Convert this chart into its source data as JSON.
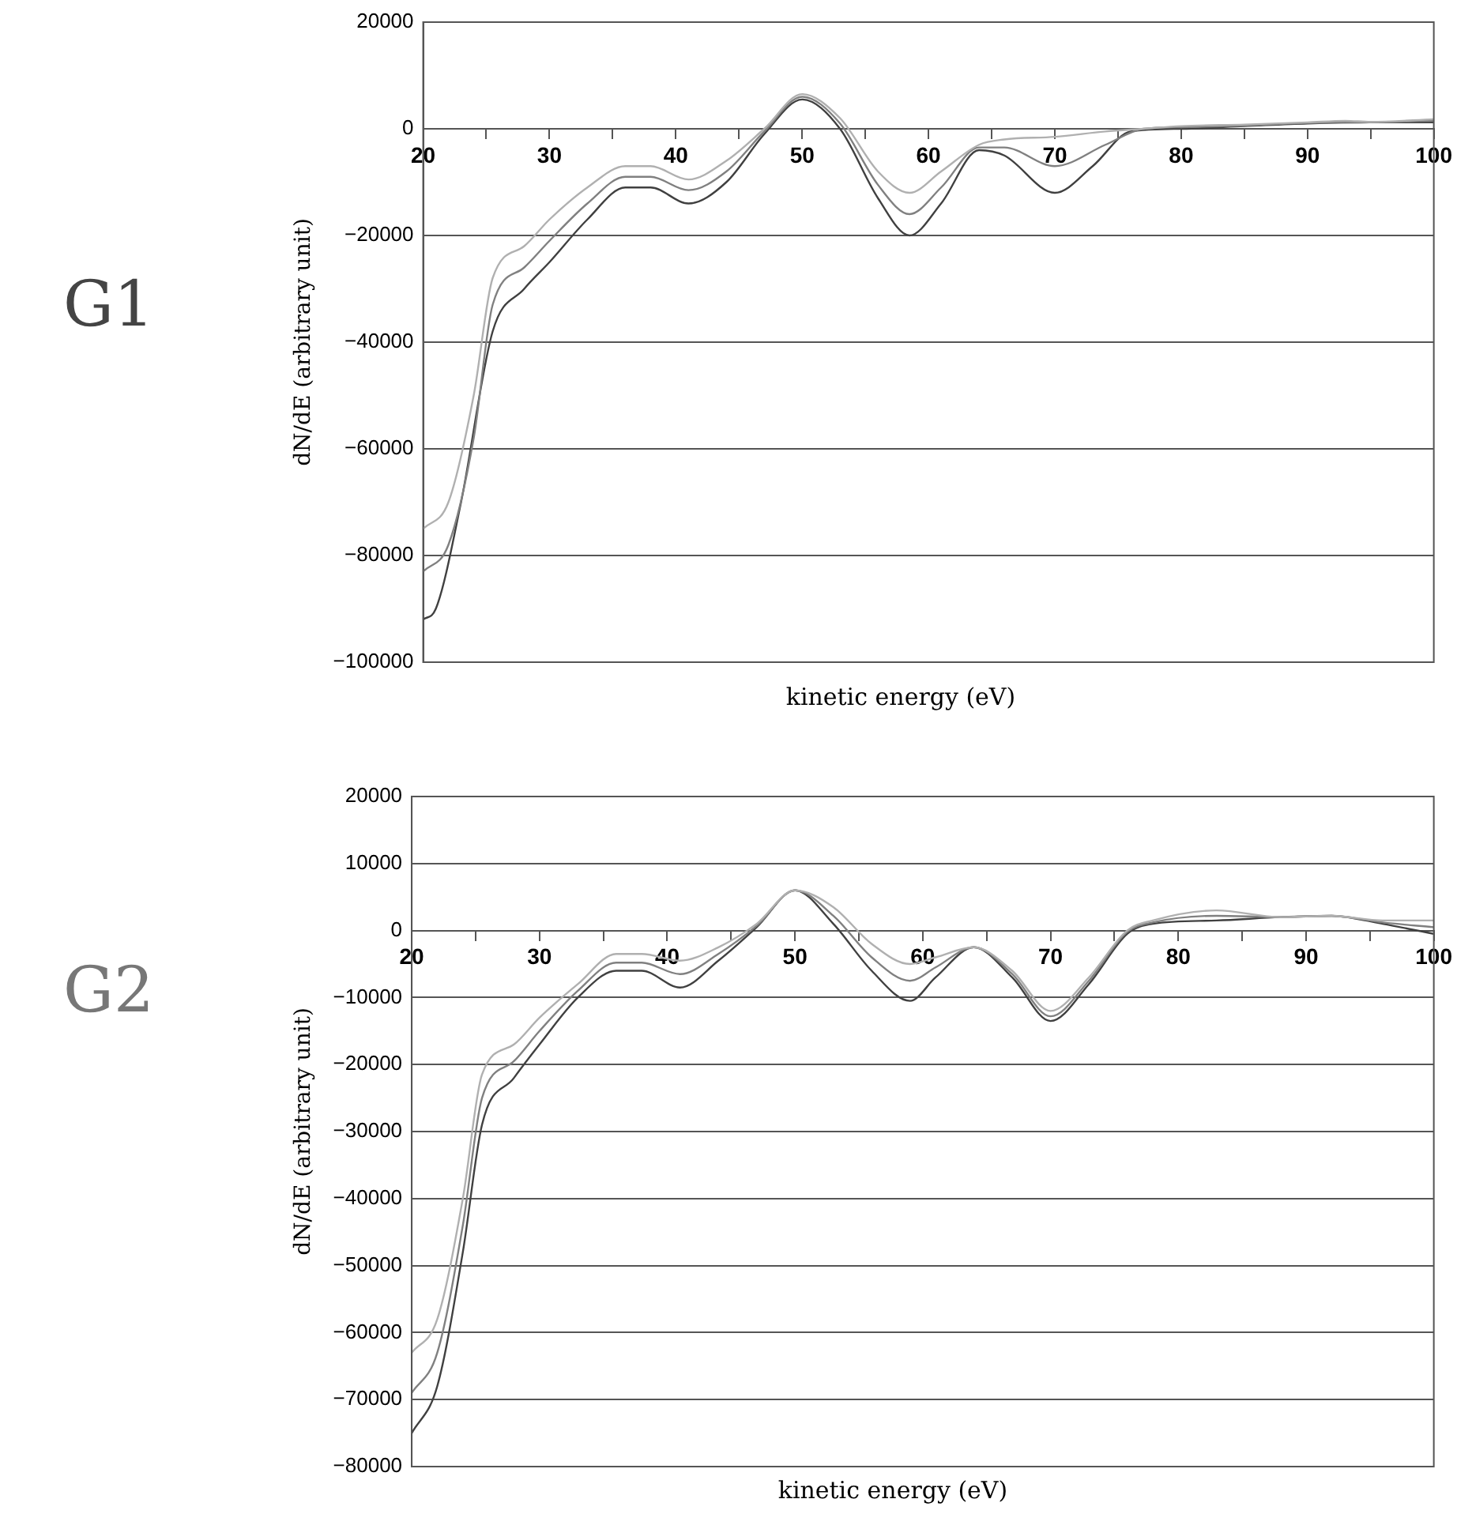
{
  "chart_data": [
    {
      "type": "line",
      "title": "G1",
      "xlabel": "kinetic energy (eV)",
      "ylabel": "dN/dE (arbitrary unit)",
      "xlim": [
        20,
        100
      ],
      "ylim": [
        -100000,
        20000
      ],
      "xticks": [
        20,
        {
          "value": 25,
          "label": null
        },
        30,
        {
          "value": 35,
          "label": null
        },
        40,
        {
          "value": 45,
          "label": null
        },
        50,
        {
          "value": 55,
          "label": null
        },
        60,
        {
          "value": 65,
          "label": null
        },
        70,
        {
          "value": 75,
          "label": null
        },
        80,
        {
          "value": 85,
          "label": null
        },
        90,
        {
          "value": 95,
          "label": null
        },
        100
      ],
      "yticks": [
        -100000,
        -80000,
        -60000,
        -40000,
        -20000,
        0,
        20000
      ],
      "grid": "y",
      "legend": false,
      "marker": "none",
      "line_style": "solid",
      "series": [
        {
          "color": "#b0b0b0",
          "x": [
            20,
            22,
            24,
            25.5,
            28,
            30,
            33,
            36,
            38,
            41,
            44,
            47,
            50,
            53,
            56,
            58.5,
            61,
            64,
            66,
            70,
            74,
            77,
            80,
            85,
            90,
            93,
            95,
            100
          ],
          "values": [
            -75000,
            -70000,
            -50000,
            -28000,
            -22000,
            -17000,
            -11000,
            -7000,
            -7000,
            -9500,
            -6000,
            0,
            6500,
            2000,
            -8000,
            -12000,
            -8000,
            -3000,
            -2000,
            -1500,
            -500,
            0,
            500,
            800,
            1200,
            1500,
            1300,
            1800
          ]
        },
        {
          "color": "#808080",
          "x": [
            20,
            22,
            24,
            25.5,
            28,
            30,
            33,
            36,
            38,
            41,
            44,
            47,
            50,
            53,
            56,
            58.5,
            61,
            64,
            66,
            70,
            74,
            77,
            80,
            85,
            90,
            95,
            100
          ],
          "values": [
            -83000,
            -78000,
            -58000,
            -33000,
            -26000,
            -21000,
            -14000,
            -9000,
            -9000,
            -11500,
            -8000,
            -500,
            6000,
            1000,
            -10500,
            -16000,
            -11000,
            -3500,
            -3500,
            -7000,
            -3000,
            0,
            300,
            600,
            1100,
            1200,
            1500
          ]
        },
        {
          "color": "#404040",
          "x": [
            20,
            21,
            23,
            25.5,
            28,
            30,
            33,
            36,
            38,
            41,
            44,
            47,
            50,
            53,
            56,
            58.5,
            61,
            64,
            66,
            70,
            73,
            76,
            80,
            85,
            90,
            95,
            100
          ],
          "values": [
            -92000,
            -90000,
            -70000,
            -38000,
            -30000,
            -25000,
            -17000,
            -11000,
            -11000,
            -14000,
            -10000,
            -1000,
            5500,
            0,
            -13000,
            -20000,
            -14000,
            -4000,
            -5000,
            -12000,
            -7000,
            -500,
            0,
            500,
            1000,
            1200,
            1200
          ]
        }
      ]
    },
    {
      "type": "line",
      "title": "G2",
      "xlabel": "kinetic energy (eV)",
      "ylabel": "dN/dE (arbitrary unit)",
      "xlim": [
        20,
        100
      ],
      "ylim": [
        -80000,
        20000
      ],
      "xticks": [
        20,
        {
          "value": 25,
          "label": null
        },
        30,
        {
          "value": 35,
          "label": null
        },
        40,
        {
          "value": 45,
          "label": null
        },
        50,
        {
          "value": 55,
          "label": null
        },
        60,
        {
          "value": 65,
          "label": null
        },
        70,
        {
          "value": 75,
          "label": null
        },
        80,
        {
          "value": 85,
          "label": null
        },
        90,
        {
          "value": 95,
          "label": null
        },
        100
      ],
      "yticks": [
        -80000,
        -70000,
        -60000,
        -50000,
        -40000,
        -30000,
        -20000,
        -10000,
        0,
        10000,
        20000
      ],
      "grid": "y",
      "legend": false,
      "marker": "none",
      "line_style": "solid",
      "series": [
        {
          "color": "#b0b0b0",
          "x": [
            20,
            22,
            24,
            25.5,
            28,
            30,
            33,
            36,
            38,
            41,
            44,
            47,
            50,
            53,
            56,
            59,
            61,
            64,
            67,
            70,
            73,
            76,
            78,
            83,
            88,
            92,
            96,
            100
          ],
          "values": [
            -63000,
            -58000,
            -40000,
            -21500,
            -17000,
            -13000,
            -8000,
            -3500,
            -3500,
            -4500,
            -2500,
            1000,
            6000,
            3500,
            -2000,
            -5000,
            -4000,
            -2500,
            -6000,
            -12000,
            -7000,
            0,
            1500,
            3000,
            2000,
            2200,
            1500,
            1500
          ]
        },
        {
          "color": "#808080",
          "x": [
            20,
            22,
            24,
            25.5,
            28,
            30,
            33,
            36,
            38,
            41,
            44,
            47,
            50,
            53,
            56,
            59,
            61,
            64,
            67,
            70,
            73,
            76,
            78,
            83,
            88,
            92,
            96,
            100
          ],
          "values": [
            -69000,
            -63000,
            -44000,
            -25000,
            -19500,
            -15000,
            -9000,
            -4800,
            -4800,
            -6500,
            -3500,
            700,
            6000,
            2200,
            -4000,
            -7500,
            -5500,
            -2500,
            -6500,
            -12800,
            -7500,
            -200,
            1200,
            2200,
            2000,
            2200,
            1200,
            500
          ]
        },
        {
          "color": "#404040",
          "x": [
            20,
            22,
            24,
            25.5,
            28,
            30,
            33,
            36,
            38,
            41,
            44,
            47,
            50,
            53,
            56,
            59,
            61,
            64,
            67,
            70,
            73,
            76,
            78,
            83,
            88,
            92,
            96,
            100
          ],
          "values": [
            -75000,
            -68000,
            -48000,
            -29000,
            -22000,
            -17000,
            -10000,
            -6000,
            -6000,
            -8500,
            -4500,
            500,
            6000,
            1000,
            -6000,
            -10500,
            -7000,
            -2500,
            -7000,
            -13500,
            -8000,
            -500,
            1000,
            1500,
            2000,
            2200,
            1000,
            -500
          ]
        }
      ]
    }
  ]
}
